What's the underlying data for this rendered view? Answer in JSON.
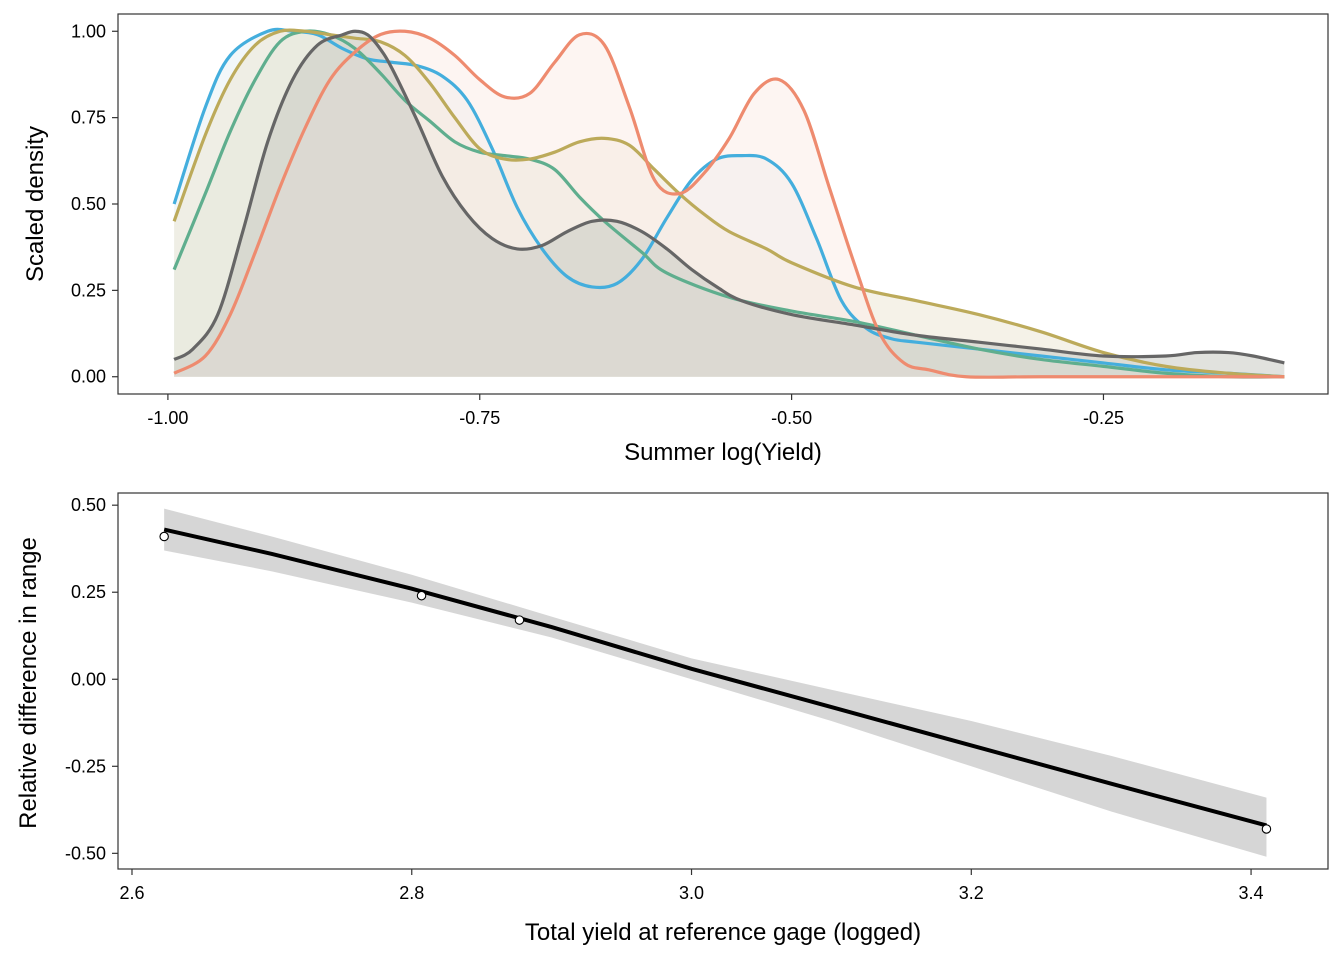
{
  "chart_data": [
    {
      "type": "area",
      "xlabel": "Summer log(Yield)",
      "ylabel": "Scaled density",
      "xlim": [
        -1.04,
        -0.07
      ],
      "ylim": [
        -0.05,
        1.05
      ],
      "x_ticks": [
        -1.0,
        -0.75,
        -0.5,
        -0.25
      ],
      "x_tick_labels": [
        "-1.00",
        "-0.75",
        "-0.50",
        "-0.25"
      ],
      "y_ticks": [
        0,
        0.25,
        0.5,
        0.75,
        1.0
      ],
      "y_tick_labels": [
        "0.00",
        "0.25",
        "0.50",
        "0.75",
        "1.00"
      ],
      "grid": false,
      "legend": "none",
      "series": [
        {
          "color": "#44AEDD",
          "fill": "#E8F0F4",
          "x": [
            -0.995,
            -0.97,
            -0.95,
            -0.92,
            -0.9,
            -0.88,
            -0.86,
            -0.84,
            -0.82,
            -0.8,
            -0.78,
            -0.76,
            -0.74,
            -0.72,
            -0.7,
            -0.68,
            -0.66,
            -0.64,
            -0.62,
            -0.6,
            -0.58,
            -0.56,
            -0.54,
            -0.52,
            -0.5,
            -0.48,
            -0.46,
            -0.44,
            -0.42,
            -0.4,
            -0.35,
            -0.3,
            -0.25,
            -0.2,
            -0.15,
            -0.105
          ],
          "y": [
            0.5,
            0.78,
            0.93,
            1.0,
            1.0,
            0.99,
            0.95,
            0.92,
            0.91,
            0.9,
            0.87,
            0.8,
            0.66,
            0.49,
            0.37,
            0.29,
            0.26,
            0.27,
            0.34,
            0.46,
            0.57,
            0.63,
            0.64,
            0.63,
            0.56,
            0.4,
            0.22,
            0.14,
            0.11,
            0.1,
            0.08,
            0.06,
            0.04,
            0.02,
            0.01,
            0.0
          ]
        },
        {
          "color": "#5FAE8E",
          "fill": "#DCEBE5",
          "x": [
            -0.995,
            -0.97,
            -0.95,
            -0.93,
            -0.91,
            -0.89,
            -0.87,
            -0.85,
            -0.83,
            -0.81,
            -0.79,
            -0.77,
            -0.75,
            -0.73,
            -0.71,
            -0.69,
            -0.67,
            -0.65,
            -0.62,
            -0.6,
            -0.55,
            -0.5,
            -0.45,
            -0.4,
            -0.35,
            -0.3,
            -0.25,
            -0.2,
            -0.15,
            -0.105
          ],
          "y": [
            0.31,
            0.53,
            0.71,
            0.86,
            0.97,
            1.0,
            0.99,
            0.95,
            0.88,
            0.8,
            0.74,
            0.68,
            0.65,
            0.64,
            0.63,
            0.6,
            0.52,
            0.45,
            0.36,
            0.3,
            0.23,
            0.19,
            0.16,
            0.12,
            0.08,
            0.05,
            0.03,
            0.01,
            0.0,
            0.0
          ]
        },
        {
          "color": "#BCAA5A",
          "fill": "#EDE8D6",
          "x": [
            -0.995,
            -0.97,
            -0.95,
            -0.93,
            -0.91,
            -0.89,
            -0.87,
            -0.85,
            -0.83,
            -0.81,
            -0.79,
            -0.77,
            -0.75,
            -0.73,
            -0.71,
            -0.69,
            -0.67,
            -0.65,
            -0.63,
            -0.61,
            -0.59,
            -0.57,
            -0.55,
            -0.52,
            -0.5,
            -0.45,
            -0.4,
            -0.35,
            -0.3,
            -0.25,
            -0.2,
            -0.15,
            -0.105
          ],
          "y": [
            0.45,
            0.7,
            0.86,
            0.96,
            1.0,
            1.0,
            0.99,
            0.98,
            0.97,
            0.93,
            0.85,
            0.75,
            0.66,
            0.63,
            0.63,
            0.65,
            0.68,
            0.69,
            0.67,
            0.6,
            0.53,
            0.47,
            0.42,
            0.37,
            0.33,
            0.26,
            0.22,
            0.18,
            0.13,
            0.07,
            0.03,
            0.01,
            0.0
          ]
        },
        {
          "color": "#EE8B6F",
          "fill": "#FCEDE8",
          "x": [
            -0.995,
            -0.97,
            -0.95,
            -0.93,
            -0.91,
            -0.89,
            -0.87,
            -0.85,
            -0.83,
            -0.81,
            -0.79,
            -0.77,
            -0.75,
            -0.73,
            -0.71,
            -0.69,
            -0.67,
            -0.65,
            -0.63,
            -0.61,
            -0.59,
            -0.57,
            -0.55,
            -0.53,
            -0.51,
            -0.49,
            -0.47,
            -0.45,
            -0.43,
            -0.41,
            -0.39,
            -0.36,
            -0.3,
            -0.2,
            -0.105
          ],
          "y": [
            0.01,
            0.06,
            0.18,
            0.36,
            0.55,
            0.72,
            0.86,
            0.94,
            0.99,
            1.0,
            0.98,
            0.93,
            0.86,
            0.81,
            0.82,
            0.91,
            0.99,
            0.96,
            0.78,
            0.57,
            0.53,
            0.59,
            0.69,
            0.82,
            0.86,
            0.77,
            0.55,
            0.33,
            0.13,
            0.04,
            0.02,
            0.0,
            0.0,
            0.0,
            0.0
          ]
        },
        {
          "color": "#666666",
          "fill": "#C8CAC3",
          "x": [
            -0.995,
            -0.98,
            -0.96,
            -0.94,
            -0.92,
            -0.9,
            -0.88,
            -0.86,
            -0.85,
            -0.84,
            -0.83,
            -0.82,
            -0.8,
            -0.78,
            -0.76,
            -0.74,
            -0.72,
            -0.7,
            -0.68,
            -0.66,
            -0.64,
            -0.62,
            -0.6,
            -0.58,
            -0.56,
            -0.54,
            -0.5,
            -0.45,
            -0.4,
            -0.35,
            -0.3,
            -0.25,
            -0.2,
            -0.175,
            -0.15,
            -0.13,
            -0.105
          ],
          "y": [
            0.05,
            0.08,
            0.18,
            0.42,
            0.68,
            0.86,
            0.96,
            0.99,
            1.0,
            0.99,
            0.95,
            0.89,
            0.74,
            0.58,
            0.47,
            0.4,
            0.37,
            0.38,
            0.42,
            0.45,
            0.45,
            0.42,
            0.37,
            0.31,
            0.26,
            0.22,
            0.18,
            0.15,
            0.12,
            0.1,
            0.08,
            0.06,
            0.06,
            0.07,
            0.07,
            0.06,
            0.04
          ]
        }
      ]
    },
    {
      "type": "scatter",
      "xlabel": "Total yield at reference gage (logged)",
      "ylabel": "Relative difference in range",
      "xlim": [
        2.59,
        3.455
      ],
      "ylim": [
        -0.545,
        0.535
      ],
      "x_ticks": [
        2.6,
        2.8,
        3.0,
        3.2,
        3.4
      ],
      "x_tick_labels": [
        "2.6",
        "2.8",
        "3.0",
        "3.2",
        "3.4"
      ],
      "y_ticks": [
        -0.5,
        -0.25,
        0.0,
        0.25,
        0.5
      ],
      "y_tick_labels": [
        "-0.50",
        "-0.25",
        "0.00",
        "0.25",
        "0.50"
      ],
      "grid": false,
      "legend": "none",
      "points": {
        "x": [
          2.623,
          2.807,
          2.877,
          3.411
        ],
        "y": [
          0.41,
          0.24,
          0.17,
          -0.43
        ]
      },
      "fit": {
        "color": "#000000",
        "band_color": "#D6D6D6",
        "x": [
          2.623,
          2.7,
          2.8,
          2.9,
          3.0,
          3.1,
          3.2,
          3.3,
          3.411
        ],
        "y": [
          0.43,
          0.36,
          0.26,
          0.15,
          0.03,
          -0.08,
          -0.19,
          -0.3,
          -0.42
        ],
        "lower": [
          0.37,
          0.31,
          0.22,
          0.12,
          0.0,
          -0.12,
          -0.25,
          -0.38,
          -0.51
        ],
        "upper": [
          0.49,
          0.41,
          0.3,
          0.18,
          0.06,
          -0.03,
          -0.12,
          -0.22,
          -0.34
        ]
      }
    }
  ]
}
